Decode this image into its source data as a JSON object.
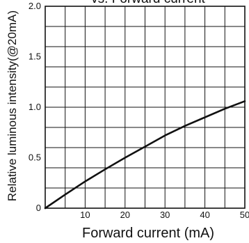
{
  "chart_data": {
    "type": "line",
    "title": "vs. Forward current",
    "xlabel": "Forward current (mA)",
    "ylabel": "Relative luminous intensity(@20mA)",
    "xlim": [
      0,
      50
    ],
    "ylim": [
      0,
      2.0
    ],
    "x_ticks": [
      10,
      20,
      30,
      40,
      50
    ],
    "y_ticks": [
      0,
      0.5,
      1.0,
      1.5,
      2.0
    ],
    "x_tick_labels": [
      "10",
      "20",
      "30",
      "40",
      "50"
    ],
    "y_tick_labels": [
      "0",
      "0.5",
      "1.0",
      "1.5",
      "2.0"
    ],
    "x_grid_step": 5,
    "y_grid_step": 0.2,
    "grid": true,
    "series": [
      {
        "x": [
          0,
          5,
          10,
          15,
          20,
          25,
          30,
          35,
          40,
          45,
          50
        ],
        "y": [
          0,
          0.135,
          0.265,
          0.385,
          0.5,
          0.61,
          0.72,
          0.815,
          0.9,
          0.985,
          1.06
        ]
      }
    ],
    "colors": {
      "line": "#111111",
      "grid": "#111111",
      "frame": "#111111"
    }
  }
}
